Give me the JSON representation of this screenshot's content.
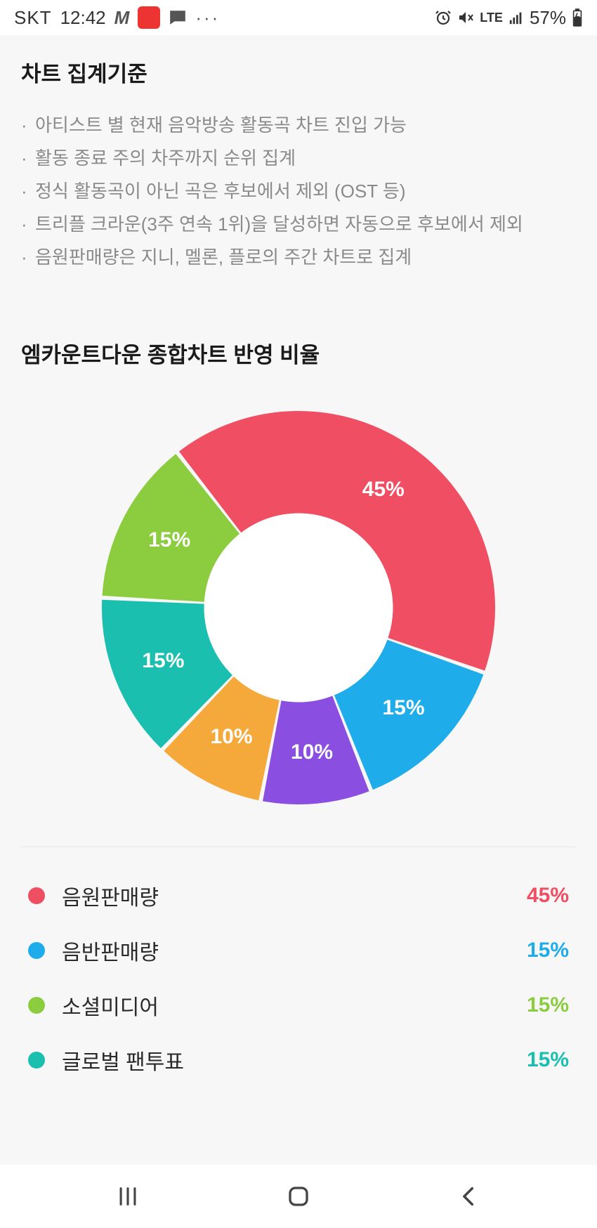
{
  "status_bar": {
    "carrier": "SKT",
    "time": "12:42",
    "network": "LTE",
    "battery": "57%"
  },
  "criteria_section": {
    "title": "차트 집계기준",
    "items": [
      "아티스트 별 현재 음악방송 활동곡 차트 진입 가능",
      "활동 종료 주의 차주까지 순위 집계",
      "정식 활동곡이 아닌 곡은 후보에서 제외 (OST 등)",
      "트리플 크라운(3주 연속 1위)을 달성하면 자동으로 후보에서 제외",
      "음원판매량은 지니, 멜론, 플로의 주간 차트로 집계"
    ]
  },
  "chart_section": {
    "title": "엠카운트다운 종합차트 반영 비율",
    "type": "donut",
    "inner_radius_pct": 48,
    "start_angle_deg": -128,
    "background_color": "#ffffff",
    "slice_gap_deg": 1.2,
    "label_fontsize": 30,
    "label_color": "#ffffff",
    "slices": [
      {
        "key": "digital",
        "label": "45%",
        "value": 45,
        "color": "#f04e62"
      },
      {
        "key": "physical",
        "label": "15%",
        "value": 15,
        "color": "#1eadea"
      },
      {
        "key": "broadcast",
        "label": "10%",
        "value": 10,
        "color": "#8a4fe0"
      },
      {
        "key": "expert",
        "label": "10%",
        "value": 10,
        "color": "#f6a93b"
      },
      {
        "key": "global",
        "label": "15%",
        "value": 15,
        "color": "#1abfb0"
      },
      {
        "key": "social",
        "label": "15%",
        "value": 15,
        "color": "#8ccc3f"
      }
    ]
  },
  "legend": {
    "items": [
      {
        "label": "음원판매량",
        "value": "45%",
        "color": "#f04e62"
      },
      {
        "label": "음반판매량",
        "value": "15%",
        "color": "#1eadea"
      },
      {
        "label": "소셜미디어",
        "value": "15%",
        "color": "#8ccc3f"
      },
      {
        "label": "글로벌 팬투표",
        "value": "15%",
        "color": "#1abfb0"
      }
    ]
  }
}
